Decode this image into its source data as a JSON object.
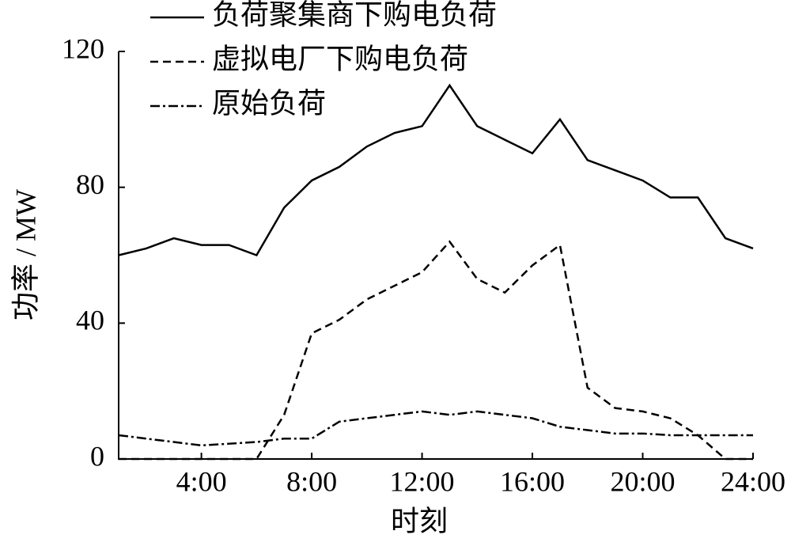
{
  "chart_data": {
    "type": "line",
    "x_label": "时刻",
    "y_label": "功率 / MW",
    "x": [
      1,
      2,
      3,
      4,
      5,
      6,
      7,
      8,
      9,
      10,
      11,
      12,
      13,
      14,
      15,
      16,
      17,
      18,
      19,
      20,
      21,
      22,
      23,
      24
    ],
    "series": [
      {
        "name": "负荷聚集商下购电负荷",
        "color": "#000000",
        "style": "solid",
        "values": [
          60,
          62,
          65,
          63,
          63,
          60,
          74,
          82,
          86,
          92,
          96,
          98,
          110,
          98,
          94,
          90,
          100,
          88,
          85,
          82,
          77,
          77,
          65,
          62
        ]
      },
      {
        "name": "虚拟电厂下购电负荷",
        "color": "#000000",
        "style": "dashed",
        "values": [
          0,
          0,
          0,
          0,
          0,
          0,
          13,
          37,
          41,
          47,
          51,
          55,
          64,
          53,
          49,
          57,
          63,
          21,
          15,
          14,
          12,
          7,
          0,
          0
        ]
      },
      {
        "name": "原始负荷",
        "color": "#000000",
        "style": "dashdot",
        "values": [
          7,
          6,
          5,
          4,
          4.5,
          5,
          6,
          6,
          11,
          12,
          13,
          14,
          13,
          14,
          13,
          12,
          9.5,
          8.5,
          7.5,
          7.5,
          7,
          7,
          7,
          7
        ]
      }
    ],
    "xlim": [
      1,
      24
    ],
    "xticks": [
      {
        "value": 4,
        "label": "4:00"
      },
      {
        "value": 8,
        "label": "8:00"
      },
      {
        "value": 12,
        "label": "12:00"
      },
      {
        "value": 16,
        "label": "16:00"
      },
      {
        "value": 20,
        "label": "20:00"
      },
      {
        "value": 24,
        "label": "24:00"
      }
    ],
    "ylim": [
      0,
      120
    ],
    "yticks": [
      0,
      40,
      80,
      120
    ],
    "grid": false,
    "legend": "top"
  }
}
